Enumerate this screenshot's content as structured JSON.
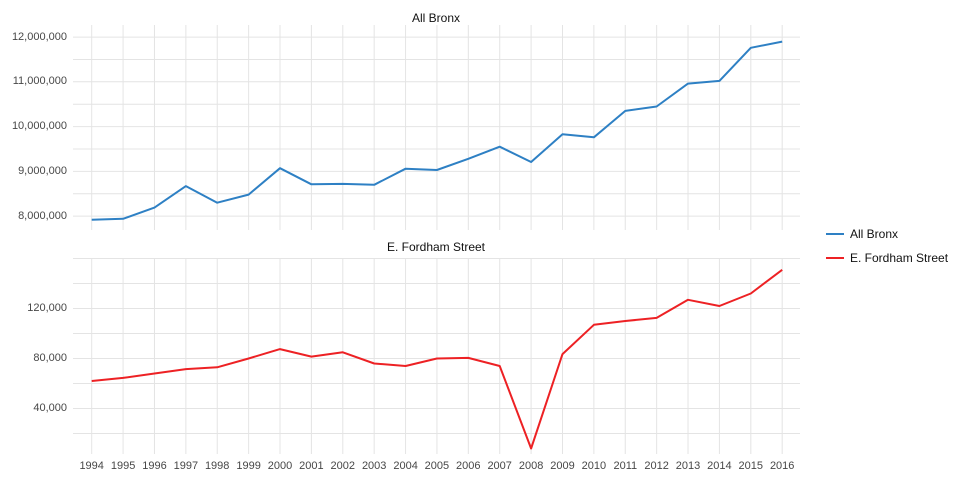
{
  "figure": {
    "background": "#ffffff",
    "gridline_color": "#e4e4e4",
    "tick_label_color": "#474747",
    "title_color": "#111111"
  },
  "x_tick_labels": [
    "1994",
    "1995",
    "1996",
    "1997",
    "1998",
    "1999",
    "2000",
    "2001",
    "2002",
    "2003",
    "2004",
    "2005",
    "2006",
    "2007",
    "2008",
    "2009",
    "2010",
    "2011",
    "2012",
    "2013",
    "2014",
    "2015",
    "2016"
  ],
  "legend": {
    "position": "right",
    "entries": [
      {
        "label": "All Bronx",
        "color": "#2e80c4"
      },
      {
        "label": "E. Fordham Street",
        "color": "#ed2124"
      }
    ]
  },
  "chart_data": [
    {
      "type": "line",
      "title": "All Bronx",
      "series": [
        {
          "name": "All Bronx",
          "color": "#2e80c4"
        }
      ],
      "x": [
        1994,
        1995,
        1996,
        1997,
        1998,
        1999,
        2000,
        2001,
        2002,
        2003,
        2004,
        2005,
        2006,
        2007,
        2008,
        2009,
        2010,
        2011,
        2012,
        2013,
        2014,
        2015,
        2016
      ],
      "values": [
        7920000,
        7940000,
        8190000,
        8670000,
        8300000,
        8480000,
        9070000,
        8710000,
        8720000,
        8700000,
        9060000,
        9030000,
        9280000,
        9550000,
        9210000,
        9830000,
        9760000,
        10350000,
        10450000,
        10960000,
        11020000,
        11760000,
        11900000
      ],
      "ylim": [
        7690000,
        12270000
      ],
      "ytick_values": [
        8000000,
        9000000,
        10000000,
        11000000,
        12000000
      ],
      "ytick_labels": [
        "8,000,000",
        "9,000,000",
        "10,000,000",
        "11,000,000",
        "12,000,000"
      ],
      "grid_step": 500000,
      "grid": true,
      "show_x_labels": false
    },
    {
      "type": "line",
      "title": "E. Fordham Street",
      "series": [
        {
          "name": "E. Fordham Street",
          "color": "#ed2124"
        }
      ],
      "x": [
        1994,
        1995,
        1996,
        1997,
        1998,
        1999,
        2000,
        2001,
        2002,
        2003,
        2004,
        2005,
        2006,
        2007,
        2008,
        2009,
        2010,
        2011,
        2012,
        2013,
        2014,
        2015,
        2016
      ],
      "values": [
        62000,
        64500,
        68000,
        71500,
        73000,
        80000,
        87500,
        81500,
        85000,
        76000,
        74000,
        80000,
        80500,
        74000,
        8000,
        83500,
        107000,
        110000,
        112500,
        127000,
        122000,
        132000,
        151000
      ],
      "ylim": [
        3600,
        160400
      ],
      "ytick_values": [
        40000,
        80000,
        120000
      ],
      "ytick_labels": [
        "40,000",
        "80,000",
        "120,000"
      ],
      "grid_step": 20000,
      "grid": true,
      "show_x_labels": true
    }
  ]
}
